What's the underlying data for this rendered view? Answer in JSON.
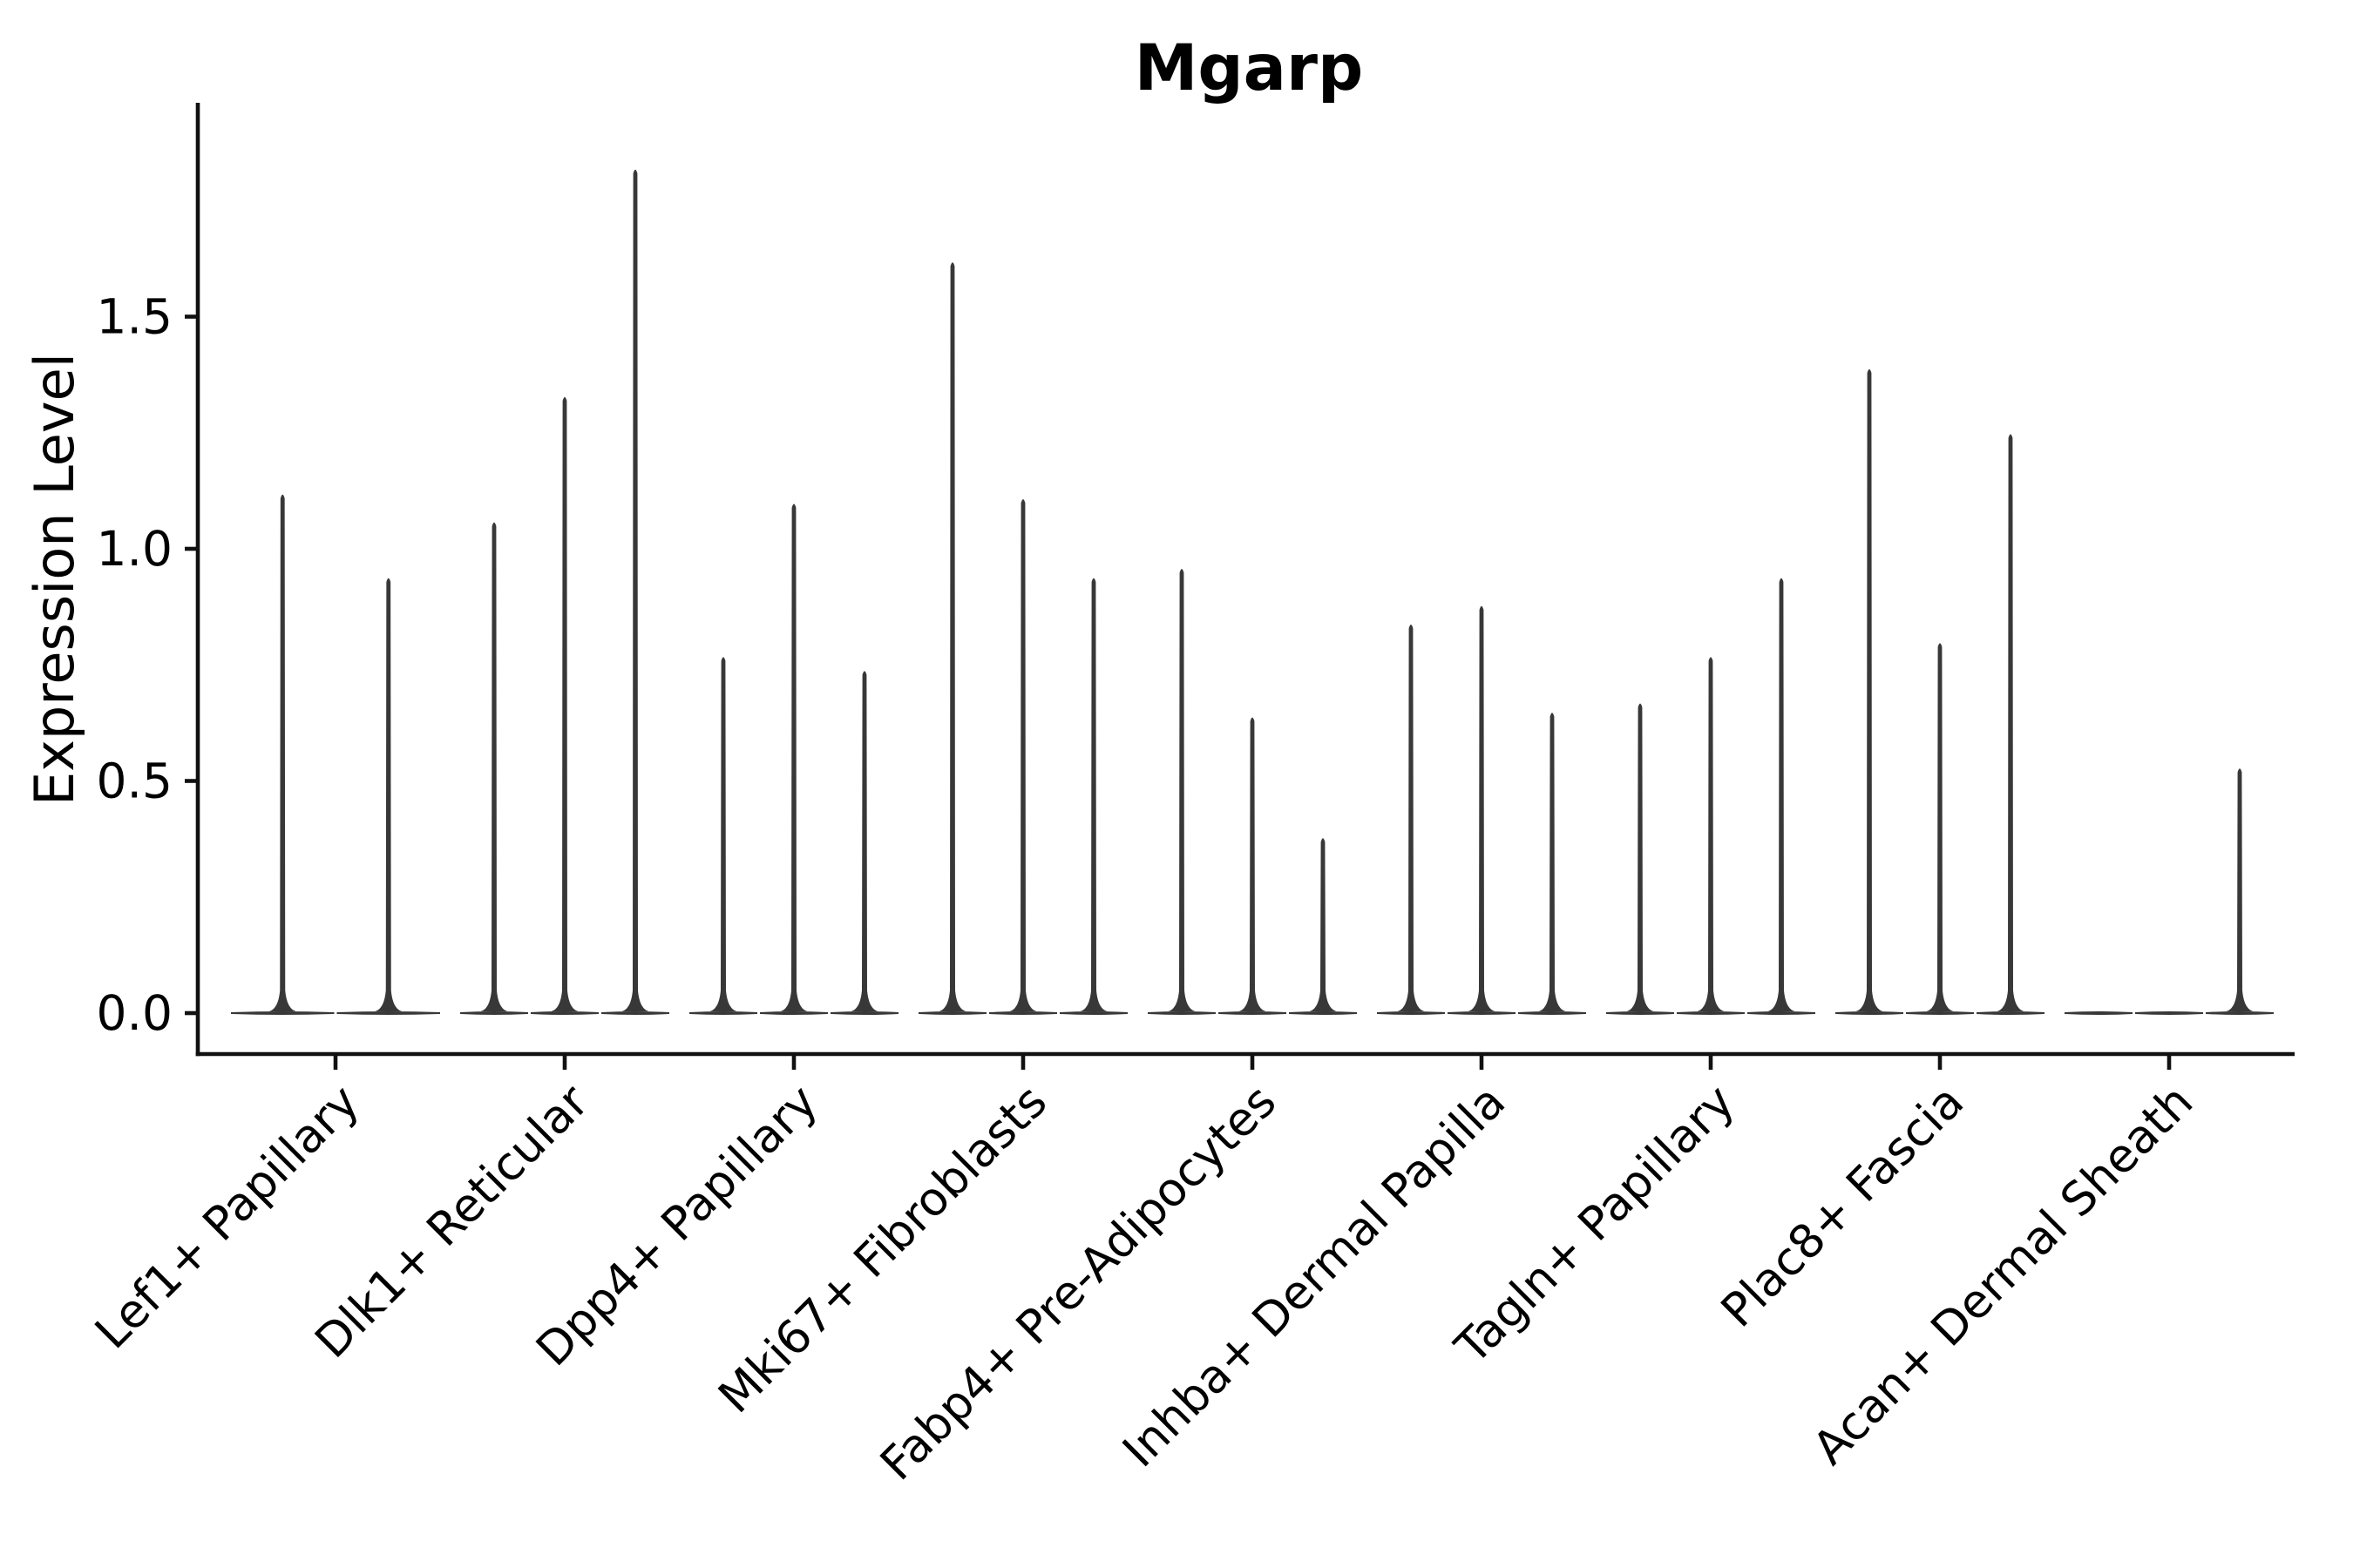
{
  "figure": {
    "background": "#ffffff"
  },
  "style": {
    "violin_color": "#383838",
    "axis_color": "#111111",
    "text_color": "#000000",
    "title_weight": "bold"
  },
  "chart_data": {
    "type": "violin",
    "title": "Mgarp",
    "xlabel": "",
    "ylabel": "Expression Level",
    "grid": false,
    "legend": "none",
    "ylim": [
      -0.09,
      1.96
    ],
    "ytick_values": [
      0.0,
      0.5,
      1.0,
      1.5
    ],
    "ytick_labels": [
      "0.0",
      "0.5",
      "1.0",
      "1.5"
    ],
    "x_tick_rotation_deg": 45,
    "baseline_value": 0.0,
    "categories": [
      "Lef1+ Papillary",
      "Dlk1+ Reticular",
      "Dpp4+ Papillary",
      "Mki67+ Fibroblasts",
      "Fabp4+ Pre-Adipocytes",
      "Inhba+ Dermal Papilla",
      "Tagln+ Papillary",
      "Plac8+ Fascia",
      "Acan+ Dermal Sheath"
    ],
    "groups": [
      {
        "category": "Lef1+ Papillary",
        "violin_max_expression": [
          1.12,
          0.94
        ]
      },
      {
        "category": "Dlk1+ Reticular",
        "violin_max_expression": [
          1.06,
          1.33,
          1.82
        ]
      },
      {
        "category": "Dpp4+ Papillary",
        "violin_max_expression": [
          0.77,
          1.1,
          0.74
        ]
      },
      {
        "category": "Mki67+ Fibroblasts",
        "violin_max_expression": [
          1.62,
          1.11,
          0.94
        ]
      },
      {
        "category": "Fabp4+ Pre-Adipocytes",
        "violin_max_expression": [
          0.96,
          0.64,
          0.38
        ]
      },
      {
        "category": "Inhba+ Dermal Papilla",
        "violin_max_expression": [
          0.84,
          0.88,
          0.65
        ]
      },
      {
        "category": "Tagln+ Papillary",
        "violin_max_expression": [
          0.67,
          0.77,
          0.94
        ]
      },
      {
        "category": "Plac8+ Fascia",
        "violin_max_expression": [
          1.39,
          0.8,
          1.25
        ]
      },
      {
        "category": "Acan+ Dermal Sheath",
        "violin_max_expression": [
          0.0,
          0.0,
          0.53
        ]
      }
    ],
    "description": "Violin plot of Mgarp expression level per fibroblast cluster; each cluster shows thin density spikes rising from a flat base at 0, indicating most cells at zero expression with sparse expressing cells up to the listed maxima."
  }
}
